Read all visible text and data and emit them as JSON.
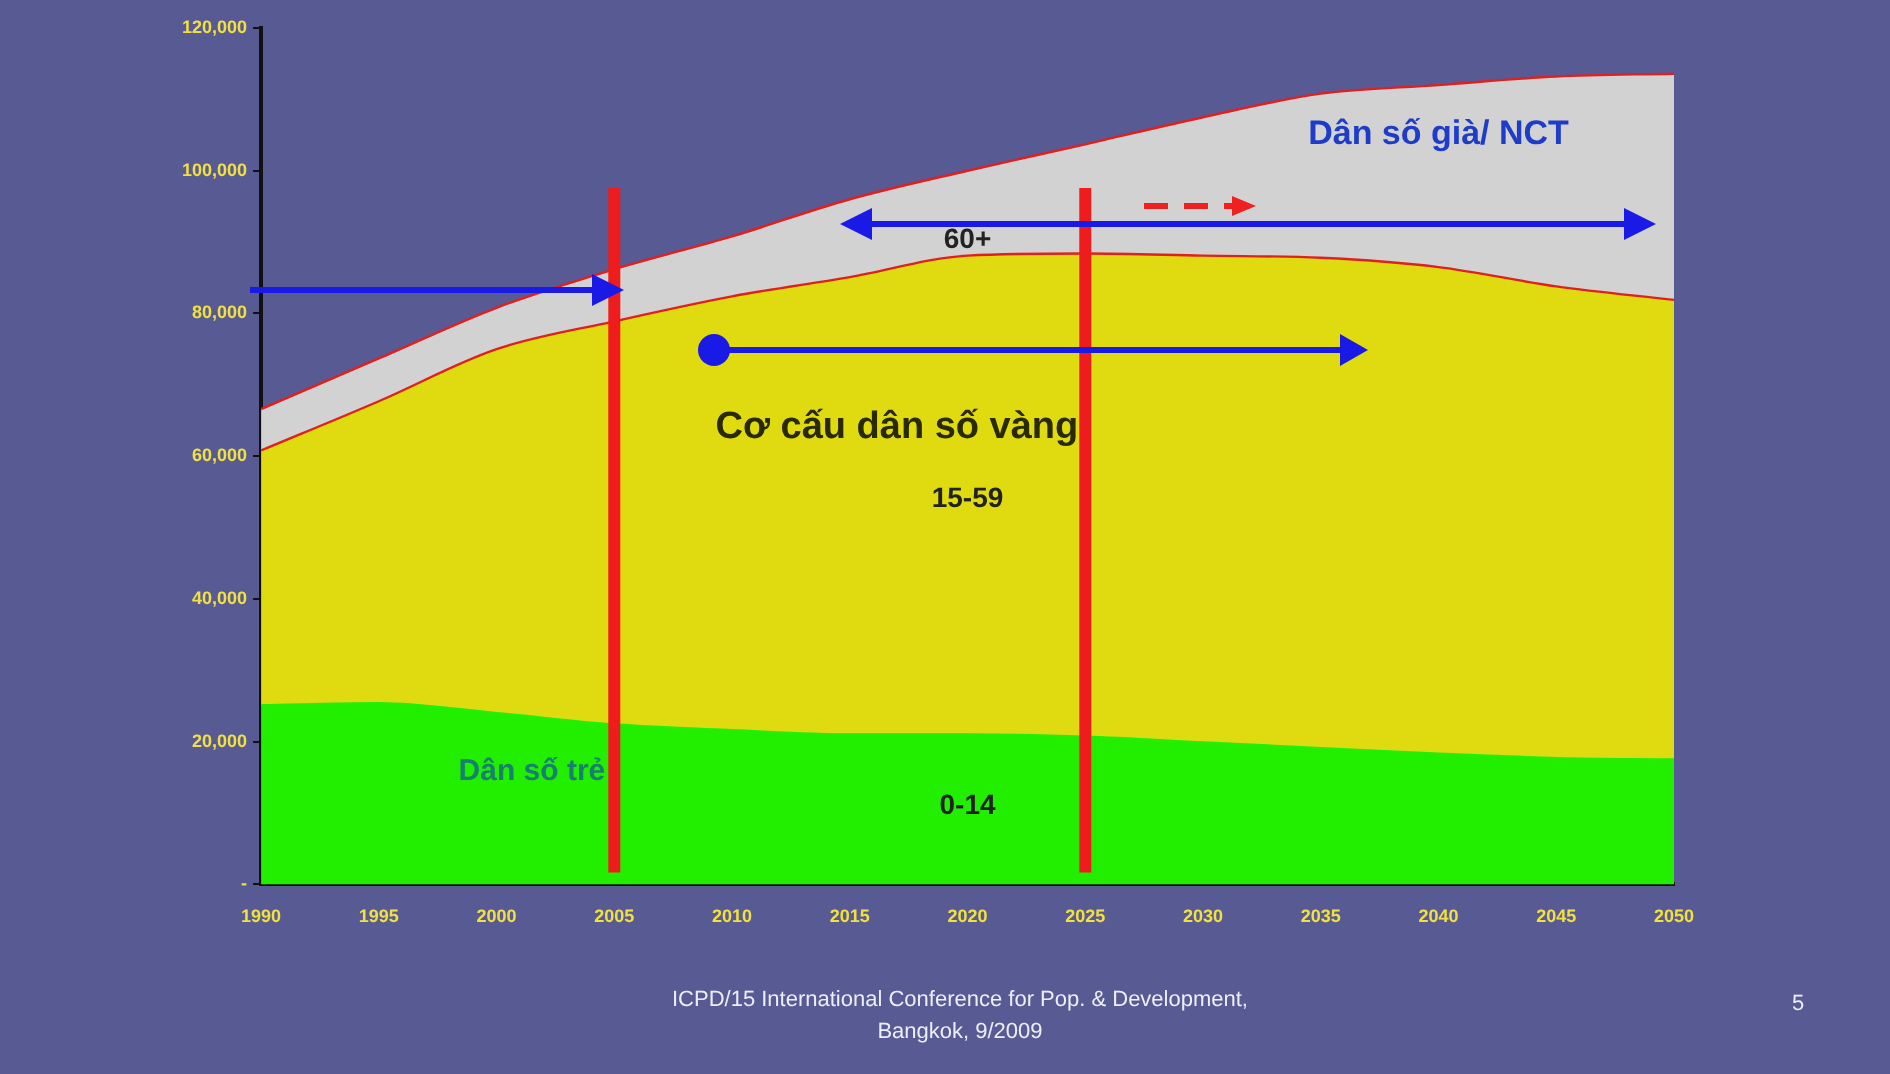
{
  "chart_data": {
    "type": "area",
    "stacked": true,
    "x": [
      1990,
      1995,
      2000,
      2005,
      2010,
      2015,
      2020,
      2025,
      2030,
      2035,
      2040,
      2045,
      2050
    ],
    "series": [
      {
        "color": "#22ee00",
        "values": [
          25100,
          25400,
          24000,
          22400,
          21600,
          21000,
          21000,
          20700,
          19900,
          19100,
          18300,
          17700,
          17500
        ]
      },
      {
        "color": "#e0da10",
        "values": [
          35700,
          42300,
          51000,
          56500,
          60800,
          64100,
          67100,
          67700,
          68200,
          68700,
          68200,
          66100,
          64400
        ]
      },
      {
        "color": "#d2d2d2",
        "values": [
          5800,
          6000,
          5800,
          7300,
          8400,
          10900,
          11900,
          15300,
          19400,
          23000,
          25500,
          29400,
          31700
        ]
      }
    ],
    "xlim": [
      1990,
      2050
    ],
    "xticks": [
      1990,
      1995,
      2000,
      2005,
      2010,
      2015,
      2020,
      2025,
      2030,
      2035,
      2040,
      2045,
      2050
    ],
    "ylim": [
      0,
      120000
    ],
    "yticks": [
      {
        "value": 0,
        "label": "-"
      },
      {
        "value": 20000,
        "label": "20,000"
      },
      {
        "value": 40000,
        "label": "40,000"
      },
      {
        "value": 60000,
        "label": "60,000"
      },
      {
        "value": 80000,
        "label": "80,000"
      },
      {
        "value": 100000,
        "label": "100,000"
      },
      {
        "value": 120000,
        "label": "120,000"
      }
    ],
    "grid": false,
    "legend": false,
    "ref_lines": [
      {
        "axis": "x",
        "value": 2005,
        "color": "#ee1c1c"
      },
      {
        "axis": "x",
        "value": 2025,
        "color": "#ee1c1c"
      }
    ],
    "annotations": [
      "Dân số già/ NCT",
      "60+",
      "Cơ cấu dân số vàng",
      "15-59",
      "Dân số trẻ",
      "0-14",
      "ICPD/15 International Conference for Pop. & Development, Bangkok, 9/2009",
      "5"
    ]
  }
}
